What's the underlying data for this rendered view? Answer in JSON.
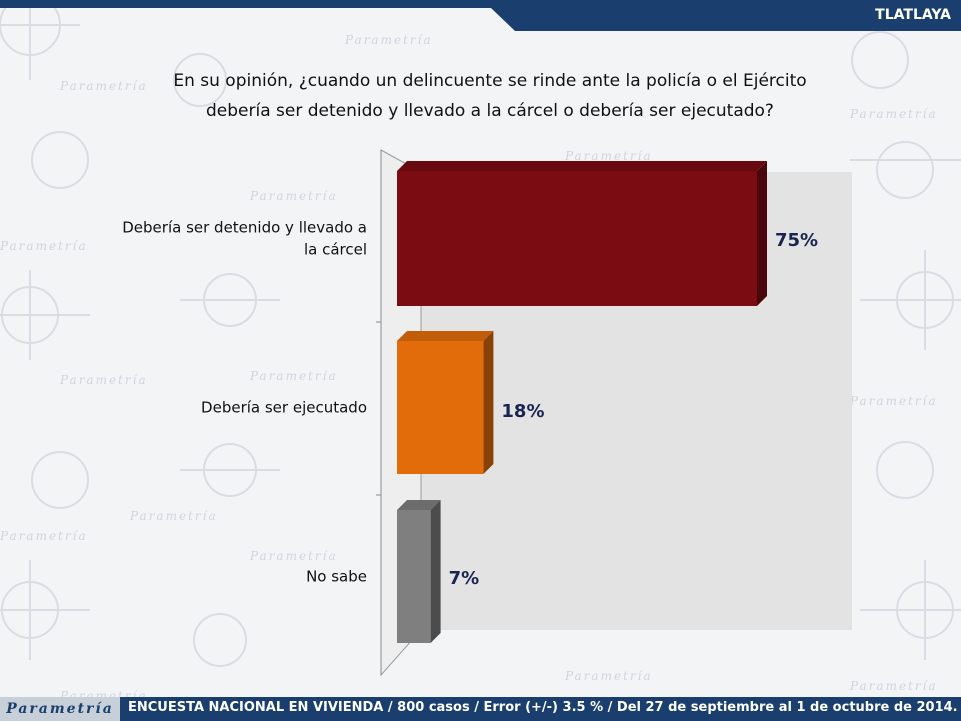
{
  "header": {
    "tab_label": "TLATLAYA"
  },
  "question": {
    "line1": "En su opinión, ¿cuando un delincuente se rinde ante la policía o el Ejército",
    "line2": "debería ser detenido y llevado a la cárcel o debería ser ejecutado?"
  },
  "chart_data": {
    "type": "bar",
    "orientation": "horizontal",
    "title": "En su opinión, ¿cuando un delincuente se rinde ante la policía o el Ejército debería ser detenido y llevado a la cárcel o debería ser ejecutado?",
    "categories": [
      "Debería ser detenido y llevado a la cárcel",
      "Debería ser ejecutado",
      "No sabe"
    ],
    "category_lines": [
      [
        "Debería ser detenido y llevado a",
        "la cárcel"
      ],
      [
        "Debería ser ejecutado"
      ],
      [
        "No sabe"
      ]
    ],
    "values": [
      75,
      18,
      7
    ],
    "value_labels": [
      "75%",
      "18%",
      "7%"
    ],
    "xlim": [
      0,
      100
    ],
    "unit": "%",
    "colors": [
      "#7a0c12",
      "#e36c0a",
      "#7f7f7f"
    ],
    "grid": false,
    "legend": "none"
  },
  "watermark": {
    "text": "Parametría"
  },
  "footer": {
    "logo": "Parametría",
    "text": "ENCUESTA NACIONAL EN VIVIENDA / 800 casos / Error (+/-) 3.5 % / Del 27 de septiembre al 1 de octubre de 2014."
  }
}
